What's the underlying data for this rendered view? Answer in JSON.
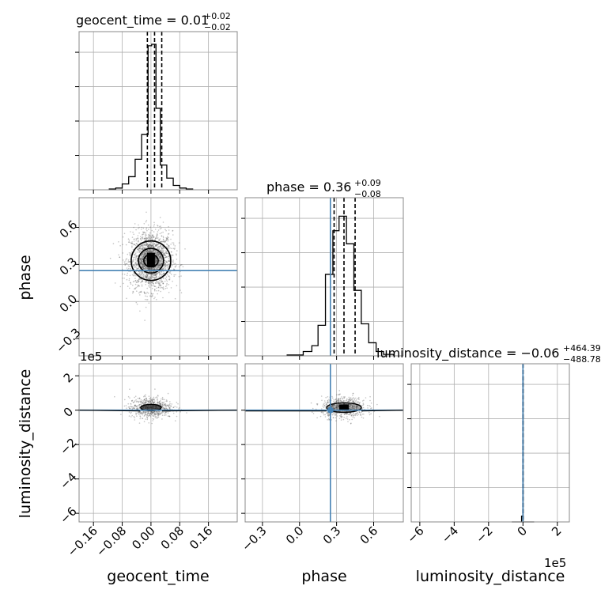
{
  "chart_data": {
    "type": "corner",
    "parameters": [
      "geocent_time",
      "phase",
      "luminosity_distance"
    ],
    "ranges": {
      "geocent_time": [
        -0.2,
        0.24
      ],
      "phase": [
        -0.44,
        0.84
      ],
      "luminosity_distance": [
        -650000,
        270000
      ]
    },
    "injection": {
      "phase": 0.25,
      "luminosity_distance": 0
    },
    "panels": {
      "hist_geocent_time": {
        "title_main": "geocent_time = 0.01",
        "title_sup": "+0.02",
        "title_sub": "−0.02",
        "quantiles": [
          -0.01,
          0.01,
          0.03
        ],
        "bins": [
          {
            "x0": -0.116,
            "x1": -0.098,
            "v": 0.005
          },
          {
            "x0": -0.098,
            "x1": -0.08,
            "v": 0.012
          },
          {
            "x0": -0.08,
            "x1": -0.062,
            "v": 0.04
          },
          {
            "x0": -0.062,
            "x1": -0.044,
            "v": 0.09
          },
          {
            "x0": -0.044,
            "x1": -0.026,
            "v": 0.21
          },
          {
            "x0": -0.026,
            "x1": -0.008,
            "v": 0.38
          },
          {
            "x0": -0.008,
            "x1": 0.002,
            "v": 0.99
          },
          {
            "x0": 0.002,
            "x1": 0.014,
            "v": 1.0
          },
          {
            "x0": 0.014,
            "x1": 0.026,
            "v": 0.56
          },
          {
            "x0": 0.026,
            "x1": 0.044,
            "v": 0.17
          },
          {
            "x0": 0.044,
            "x1": 0.062,
            "v": 0.08
          },
          {
            "x0": 0.062,
            "x1": 0.08,
            "v": 0.03
          },
          {
            "x0": 0.08,
            "x1": 0.098,
            "v": 0.012
          },
          {
            "x0": 0.098,
            "x1": 0.116,
            "v": 0.005
          }
        ]
      },
      "hist_phase": {
        "title_main": "phase = 0.36",
        "title_sup": "+0.09",
        "title_sub": "−0.08",
        "quantiles": [
          0.28,
          0.36,
          0.45
        ],
        "bins": [
          {
            "x0": -0.1,
            "x1": 0.03,
            "v": 0.006
          },
          {
            "x0": 0.03,
            "x1": 0.1,
            "v": 0.03
          },
          {
            "x0": 0.1,
            "x1": 0.15,
            "v": 0.07
          },
          {
            "x0": 0.15,
            "x1": 0.21,
            "v": 0.21
          },
          {
            "x0": 0.21,
            "x1": 0.27,
            "v": 0.56
          },
          {
            "x0": 0.27,
            "x1": 0.32,
            "v": 0.86
          },
          {
            "x0": 0.32,
            "x1": 0.38,
            "v": 0.96
          },
          {
            "x0": 0.38,
            "x1": 0.44,
            "v": 0.77
          },
          {
            "x0": 0.44,
            "x1": 0.5,
            "v": 0.45
          },
          {
            "x0": 0.5,
            "x1": 0.56,
            "v": 0.22
          },
          {
            "x0": 0.56,
            "x1": 0.62,
            "v": 0.09
          },
          {
            "x0": 0.62,
            "x1": 0.68,
            "v": 0.03
          },
          {
            "x0": 0.68,
            "x1": 0.76,
            "v": 0.01
          }
        ]
      },
      "hist_luminosity_distance": {
        "title_main": "luminosity_distance = −0.06",
        "title_sup": "+464.39",
        "title_sub": "−488.78",
        "quantiles": [
          -488.84,
          -0.06,
          464.33
        ],
        "bins": [
          {
            "x0": -65000,
            "x1": -8000,
            "v": 0.0
          },
          {
            "x0": -8000,
            "x1": -800,
            "v": 0.04
          },
          {
            "x0": -800,
            "x1": 800,
            "v": 1.0
          },
          {
            "x0": 800,
            "x1": 65000,
            "v": 0.0
          }
        ]
      }
    },
    "scatter_phase_vs_geocent_time": {
      "center": [
        0.0,
        0.33
      ],
      "spread": [
        0.03,
        0.12
      ],
      "contours": [
        [
          0.02,
          0.05
        ],
        [
          0.035,
          0.1
        ],
        [
          0.055,
          0.16
        ]
      ]
    },
    "scatter_distance_vs_geocent_time": {
      "center": [
        0.0,
        15000
      ],
      "spread": [
        0.03,
        30000
      ]
    },
    "scatter_distance_vs_phase": {
      "center": [
        0.36,
        15000
      ],
      "spread": [
        0.09,
        30000
      ]
    },
    "axes": {
      "geocent_time": {
        "label": "geocent_time",
        "ticks": [
          -0.16,
          -0.08,
          0.0,
          0.08,
          0.16
        ],
        "tick_labels": [
          "−0.16",
          "−0.08",
          "0.00",
          "0.08",
          "0.16"
        ]
      },
      "phase": {
        "label": "phase",
        "ticks": [
          -0.3,
          0.0,
          0.3,
          0.6
        ],
        "tick_labels": [
          "−0.3",
          "0.0",
          "0.3",
          "0.6"
        ]
      },
      "luminosity_distance": {
        "label": "luminosity_distance",
        "ticks": [
          -600000,
          -400000,
          -200000,
          0,
          200000
        ],
        "tick_labels": [
          "−6",
          "−4",
          "−2",
          "0",
          "2"
        ],
        "offset": "1e5"
      }
    },
    "colors": {
      "hist": "#000000",
      "injection": "#4682b4",
      "scatter": "#5a5a5a",
      "grid": "#b0b0b0"
    }
  }
}
